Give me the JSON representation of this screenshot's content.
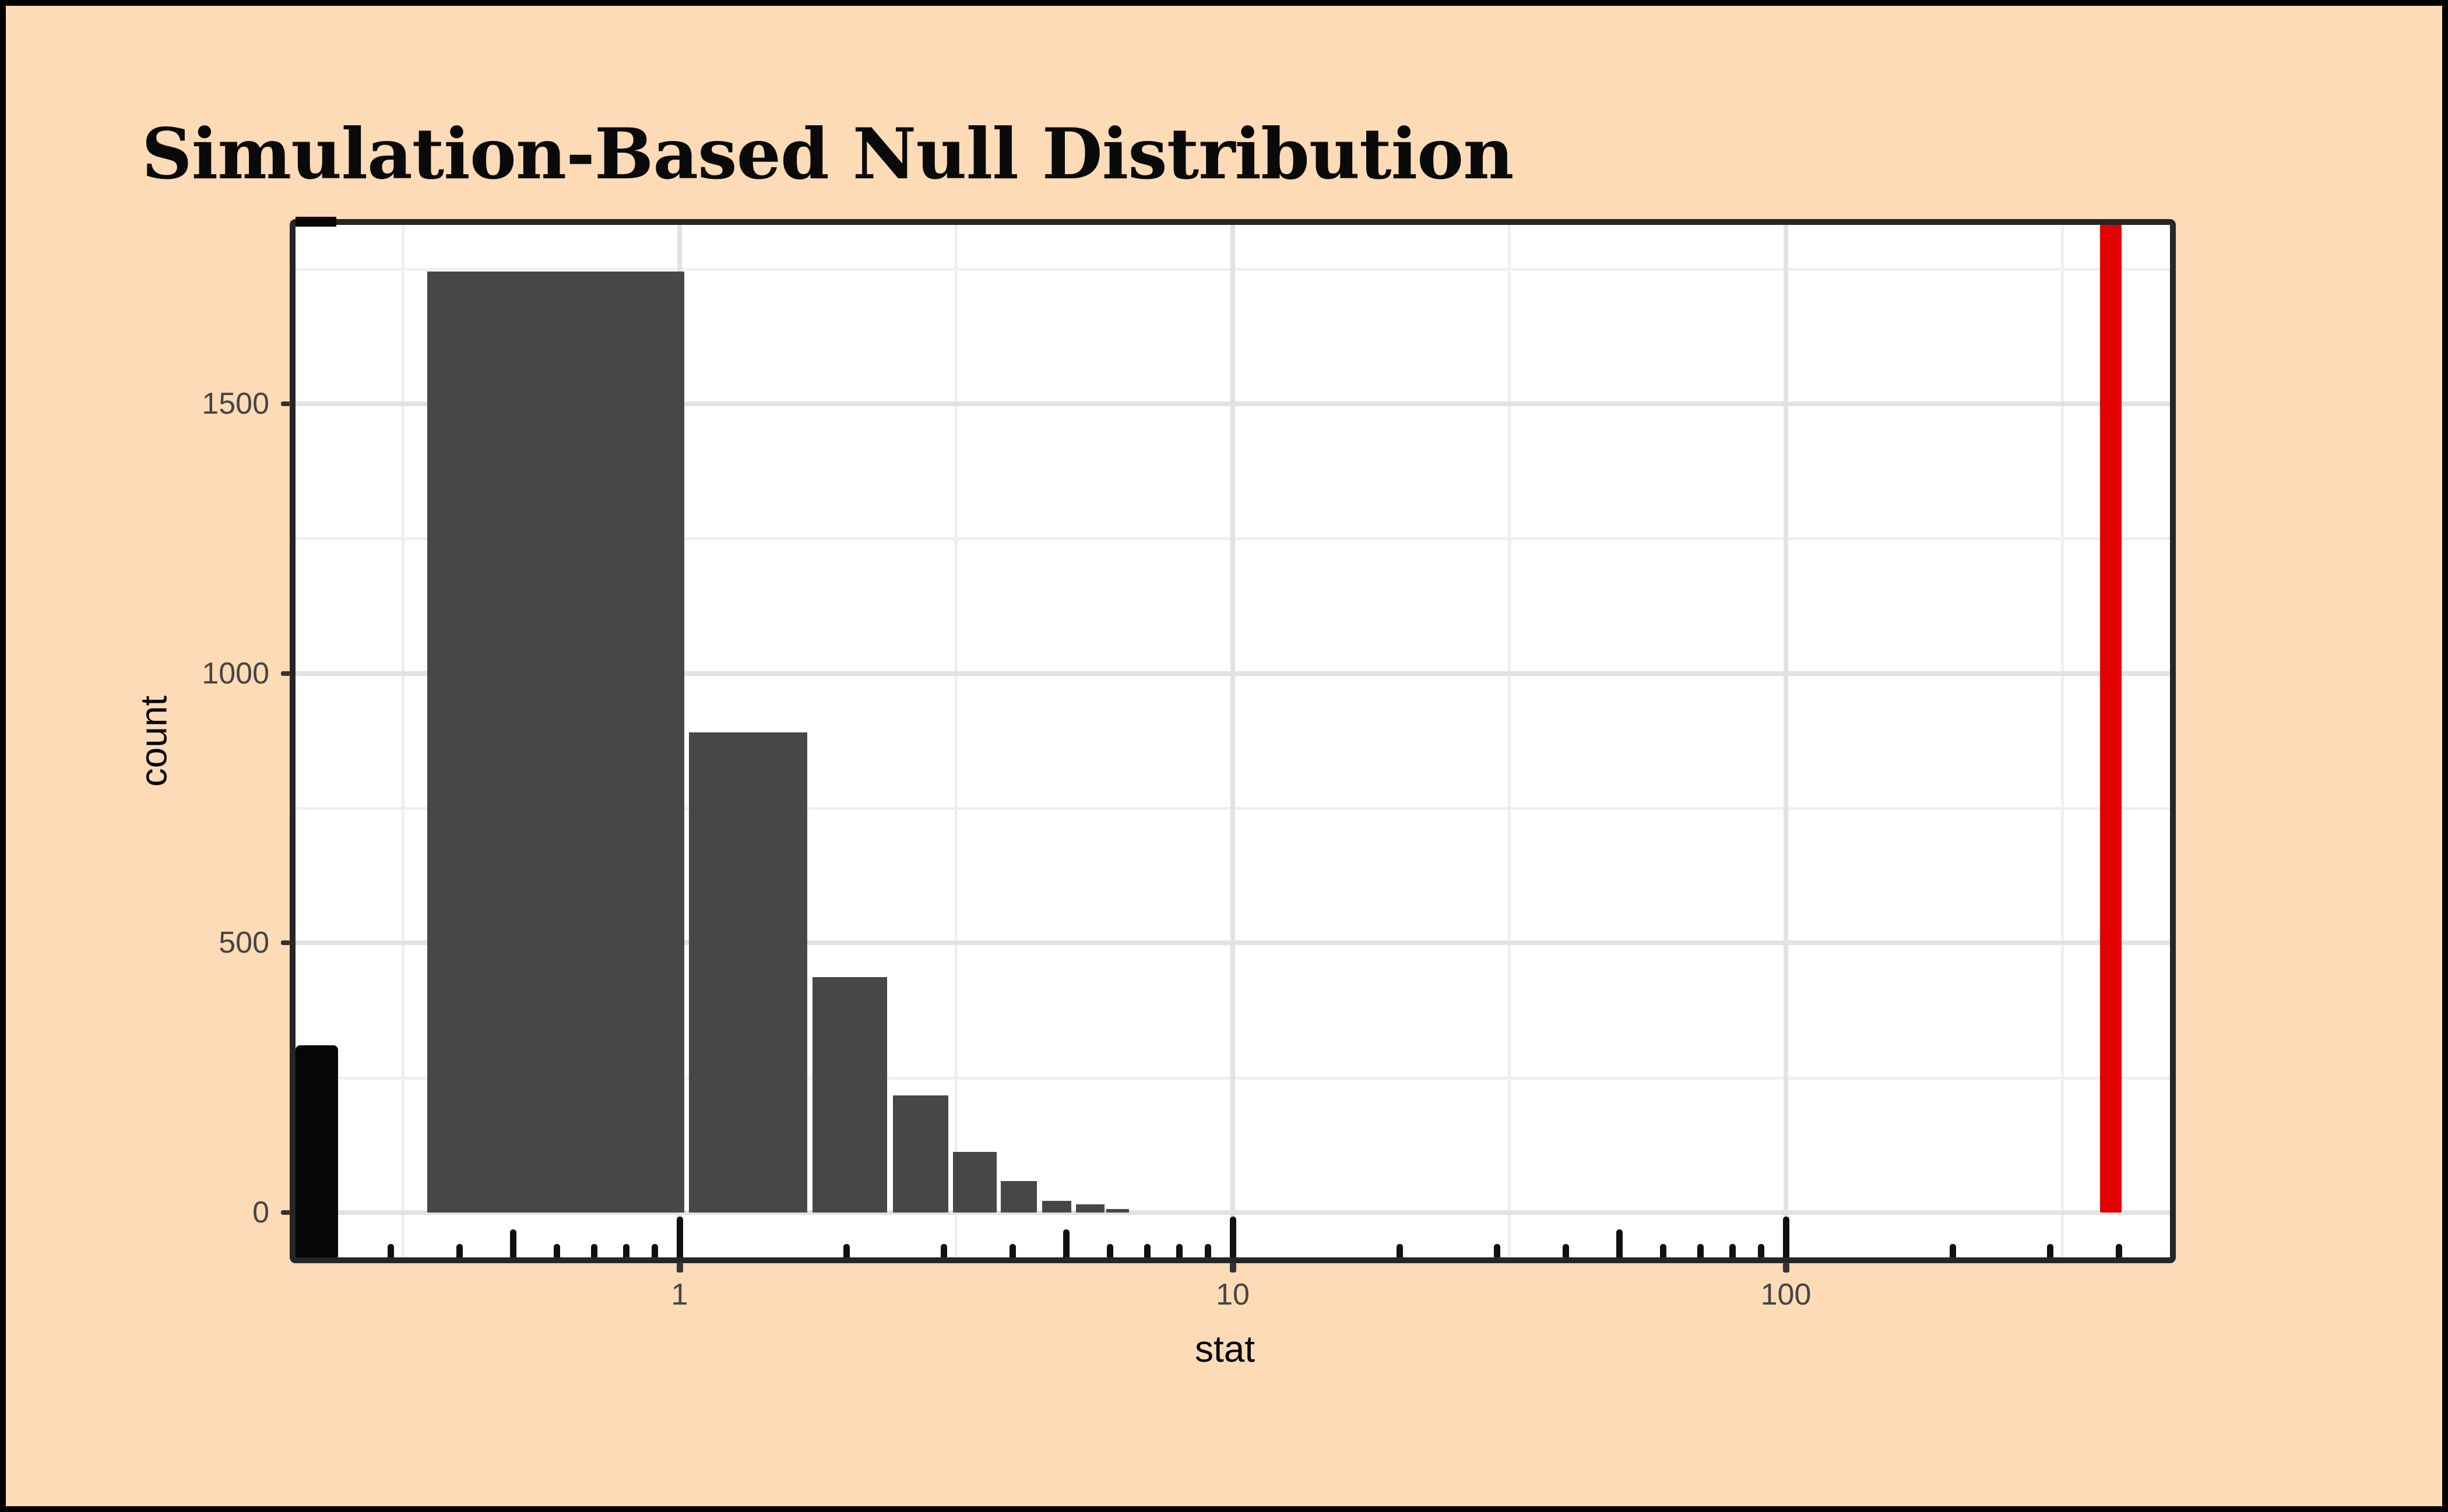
{
  "figure": {
    "title": "Simulation-Based Null Distribution",
    "background_color": "#FCDBB6",
    "outer_frame_color": "#000000",
    "panel_background": "#FFFFFF",
    "panel_border_color": "#262626",
    "major_grid_color": "#E2E2E2",
    "minor_grid_color": "#EFEFEF",
    "tick_color": "#333333",
    "tick_label_color": "#454545"
  },
  "chart_data": {
    "type": "bar",
    "subtype": "histogram-on-log10-x-axis",
    "title": "Simulation-Based Null Distribution",
    "xlabel": "stat",
    "ylabel": "count",
    "x_scale": "log10",
    "x_domain": [
      0.2,
      500
    ],
    "ylim": [
      0,
      1835
    ],
    "grid": "on",
    "legend": "none",
    "x_tick_labels": [
      "1",
      "10",
      "100"
    ],
    "x_major_ticks": [
      1,
      10,
      100
    ],
    "x_medium_logticks": [
      0.5,
      5,
      50
    ],
    "x_minor_logticks": [
      0.3,
      0.4,
      0.6,
      0.7,
      0.8,
      0.9,
      2,
      3,
      4,
      6,
      7,
      8,
      9,
      20,
      30,
      40,
      60,
      70,
      80,
      90,
      200,
      300,
      400
    ],
    "x_major_gridlines": [
      1,
      10,
      100
    ],
    "x_minor_gridlines": [
      0.316,
      3.16,
      31.6,
      316
    ],
    "y_tick_labels": [
      "0",
      "500",
      "1000",
      "1500"
    ],
    "y_major_ticks": [
      0,
      500,
      1000,
      1500
    ],
    "y_minor_gridlines": [
      250,
      750,
      1250,
      1750
    ],
    "bar_color": "#474747",
    "bars": [
      {
        "left": 0.35,
        "right": 1.02,
        "count": 1745
      },
      {
        "left": 1.04,
        "right": 1.7,
        "count": 890
      },
      {
        "left": 1.74,
        "right": 2.37,
        "count": 437
      },
      {
        "left": 2.43,
        "right": 3.06,
        "count": 217
      },
      {
        "left": 3.12,
        "right": 3.74,
        "count": 112
      },
      {
        "left": 3.81,
        "right": 4.43,
        "count": 58
      },
      {
        "left": 4.52,
        "right": 5.11,
        "count": 22
      },
      {
        "left": 5.21,
        "right": 5.86,
        "count": 15
      },
      {
        "left": 5.91,
        "right": 6.49,
        "count": 6
      }
    ],
    "clipped_edge_bar": {
      "left": 0.202,
      "right": 0.241,
      "count": 310,
      "color": "#060606",
      "extends_below_axis_to_panel_bottom": true,
      "notch_on_top_border": true
    },
    "observed_stat_line": {
      "x": 386,
      "color": "#E30000",
      "from_count": 0,
      "to": "panel-top"
    }
  }
}
